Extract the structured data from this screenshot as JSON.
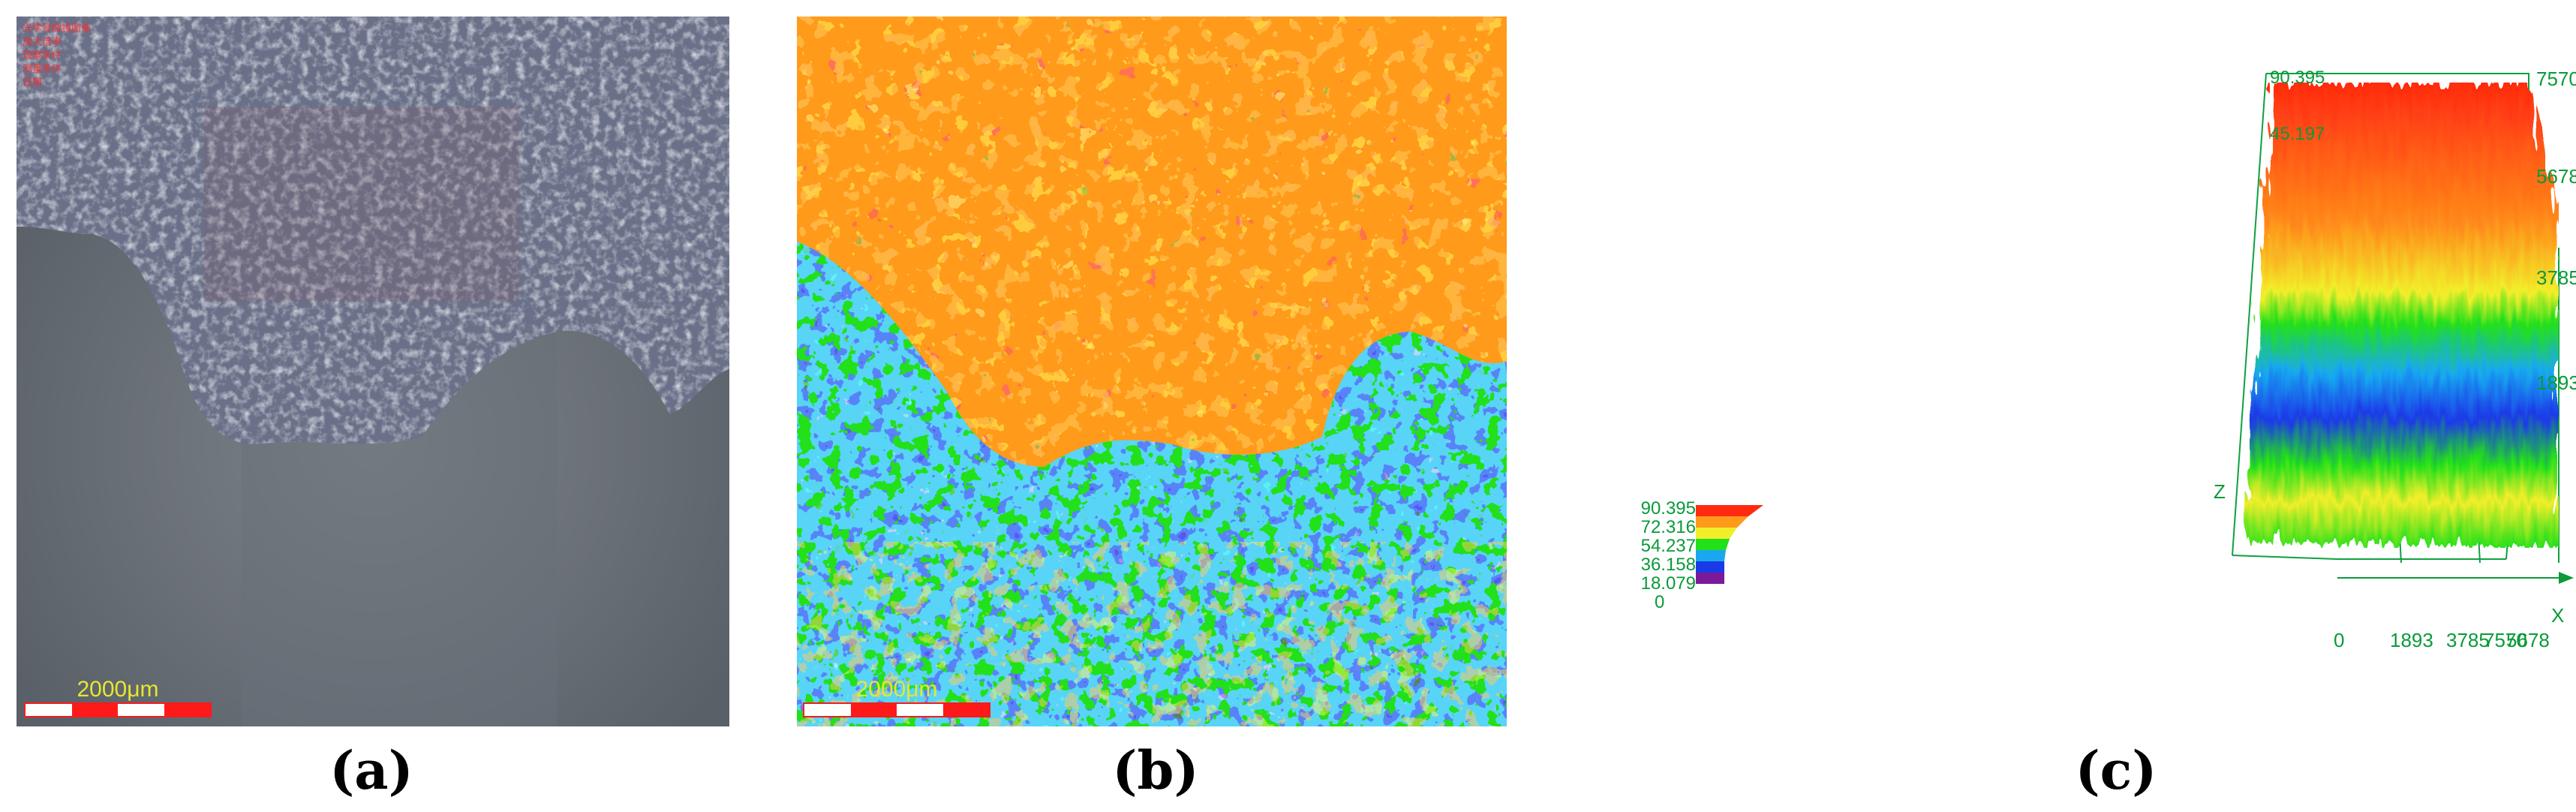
{
  "captions": {
    "a": "(a)",
    "b": "(b)",
    "c": "(c)"
  },
  "panel_a": {
    "scale_label": "2000μm",
    "info_lines": [
      "光学显微镜图像",
      "放大倍率",
      "观察条件",
      "测量条件",
      "日期"
    ]
  },
  "panel_b": {
    "scale_label": "2000μm"
  },
  "panel_c": {
    "legend_values": [
      "90.395",
      "72.316",
      "54.237",
      "36.158",
      "18.079",
      "0"
    ],
    "z_top_label": "90.395",
    "z_inner_label": "45.197",
    "x_ticks": [
      "0",
      "1893",
      "3785",
      "5678",
      "7570"
    ],
    "y_ticks": [
      "7570",
      "5678",
      "3785",
      "1893"
    ],
    "axis_x": "X",
    "axis_z": "Z",
    "colors": {
      "green_axis": "#0a9a3a",
      "line": "#10a040"
    }
  },
  "colors": {
    "red": "#ff2a10",
    "orange": "#ff9a1a",
    "yellow": "#f2ee2a",
    "green": "#22e01a",
    "cyan": "#19a8f0",
    "blue": "#1a3ae8",
    "purple": "#7a1a9a"
  }
}
